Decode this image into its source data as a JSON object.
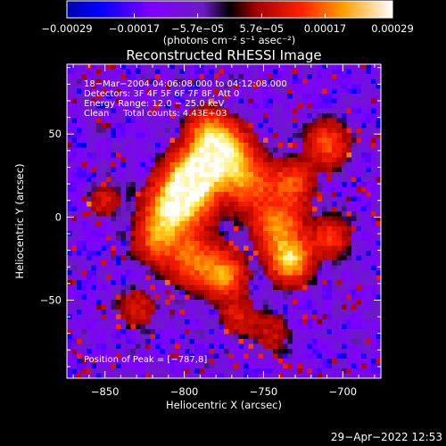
{
  "chart_data": {
    "type": "heatmap",
    "title": "Reconstructed RHESSI Image",
    "xlabel": "Heliocentric X (arcsec)",
    "ylabel": "Heliocentric Y (arcsec)",
    "xlim": [
      -874,
      -676
    ],
    "ylim": [
      -97,
      92
    ],
    "x_ticks": [
      -850,
      -800,
      -750,
      -700
    ],
    "x_tick_labels": [
      "−850",
      "−800",
      "−750",
      "−700"
    ],
    "y_ticks": [
      -50,
      0,
      50
    ],
    "y_tick_labels": [
      "−50",
      "0",
      "50"
    ],
    "colorbar": {
      "colormap": "rainbow-to-hot",
      "range": [
        -0.00029,
        0.00029
      ],
      "ticks": [
        -0.00029,
        -0.00017,
        -5.7e-05,
        5.7e-05,
        0.00017,
        0.00029
      ],
      "tick_labels": [
        "−0.00029",
        "−0.00017",
        "−5.7e−05",
        "5.7e−05",
        "0.00017",
        "0.00029"
      ],
      "unit_label": "(photons cm⁻² s⁻¹ asec⁻²)"
    },
    "annotations": [
      "18−Mar−2004 04:06:08.000 to 04:12:08.000",
      "Detectors: 3F 4F 5F 6F 7F 8F, Att 0",
      "Energy Range: 12.0 − 25.0 keV",
      "Clean     Total counts: 4.43E+03",
      "Position of Peak = [−787,8]"
    ],
    "peak_position": [
      -787,
      8
    ],
    "sources": [
      {
        "x": -800,
        "y": 13,
        "amplitude": 1.0,
        "sigma": 12
      },
      {
        "x": -792,
        "y": 28,
        "amplitude": 0.8,
        "sigma": 10
      },
      {
        "x": -774,
        "y": 38,
        "amplitude": 0.85,
        "sigma": 11
      },
      {
        "x": -785,
        "y": 52,
        "amplitude": 0.55,
        "sigma": 9
      },
      {
        "x": -760,
        "y": 20,
        "amplitude": 0.55,
        "sigma": 11
      },
      {
        "x": -812,
        "y": 0,
        "amplitude": 0.5,
        "sigma": 10
      },
      {
        "x": -818,
        "y": -15,
        "amplitude": 0.45,
        "sigma": 9
      },
      {
        "x": -795,
        "y": -25,
        "amplitude": 0.55,
        "sigma": 11
      },
      {
        "x": -775,
        "y": -35,
        "amplitude": 0.65,
        "sigma": 9
      },
      {
        "x": -733,
        "y": -26,
        "amplitude": 0.85,
        "sigma": 9
      },
      {
        "x": -741,
        "y": -5,
        "amplitude": 0.65,
        "sigma": 10
      },
      {
        "x": -732,
        "y": 20,
        "amplitude": 0.5,
        "sigma": 9
      },
      {
        "x": -710,
        "y": 44,
        "amplitude": 0.5,
        "sigma": 9
      },
      {
        "x": -708,
        "y": -12,
        "amplitude": 0.45,
        "sigma": 8
      },
      {
        "x": -850,
        "y": 10,
        "amplitude": 0.3,
        "sigma": 7
      },
      {
        "x": -830,
        "y": -55,
        "amplitude": 0.3,
        "sigma": 8
      },
      {
        "x": -766,
        "y": -60,
        "amplitude": 0.3,
        "sigma": 8
      },
      {
        "x": -745,
        "y": -70,
        "amplitude": 0.25,
        "sigma": 8
      }
    ]
  },
  "timestamp": "29−Apr−2022 12:53"
}
